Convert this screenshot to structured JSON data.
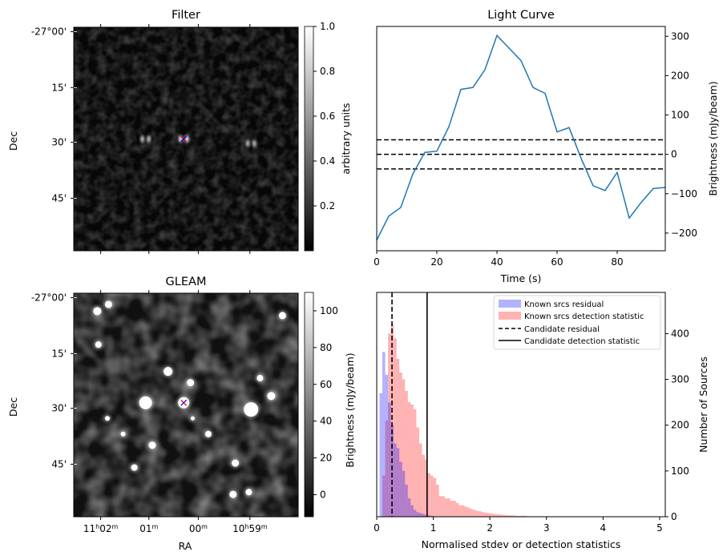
{
  "chart_data": [
    {
      "type": "heatmap",
      "title": "Filter",
      "xlabel": "",
      "ylabel": "Dec",
      "ytick_labels": [
        "-27°00'",
        "15'",
        "30'",
        "45'"
      ],
      "colorbar": {
        "label": "arbitrary units",
        "range": [
          0.0,
          1.0
        ],
        "ticks": [
          "0.2",
          "0.4",
          "0.6",
          "0.8",
          "1.0"
        ],
        "colormap": "gray"
      },
      "sources": [
        {
          "ra_frac": 0.32,
          "dec_frac": 0.5,
          "level": 0.85
        },
        {
          "ra_frac": 0.49,
          "dec_frac": 0.5,
          "level": 1.0
        },
        {
          "ra_frac": 0.79,
          "dec_frac": 0.52,
          "level": 0.8
        },
        {
          "ra_frac": 0.42,
          "dec_frac": 0.33,
          "level": 0.25
        }
      ],
      "candidate_marker": {
        "ra_frac": 0.49,
        "dec_frac": 0.5,
        "colors": [
          "#ff0000",
          "#0000ff"
        ]
      }
    },
    {
      "type": "heatmap",
      "title": "GLEAM",
      "xlabel": "RA",
      "ylabel": "Dec",
      "ytick_labels": [
        "-27°00'",
        "15'",
        "30'",
        "45'"
      ],
      "xtick_labels": [
        {
          "text": "11",
          "h": "h",
          "min": "02",
          "m": "m"
        },
        {
          "text": "01",
          "h": "",
          "min": "",
          "m": "m"
        },
        {
          "text": "00",
          "h": "",
          "min": "",
          "m": "m"
        },
        {
          "text": "10",
          "h": "h",
          "min": "59",
          "m": "m"
        }
      ],
      "colorbar": {
        "label": "Brightness (mJy/beam)",
        "range": [
          -12,
          110
        ],
        "ticks": [
          "0",
          "20",
          "40",
          "60",
          "80",
          "100"
        ],
        "colormap": "gray"
      },
      "sources": [
        {
          "ra_frac": 0.105,
          "dec_frac": 0.08,
          "size": 1.0
        },
        {
          "ra_frac": 0.155,
          "dec_frac": 0.05,
          "size": 0.9
        },
        {
          "ra_frac": 0.11,
          "dec_frac": 0.23,
          "size": 0.8
        },
        {
          "ra_frac": 0.42,
          "dec_frac": 0.35,
          "size": 1.1
        },
        {
          "ra_frac": 0.52,
          "dec_frac": 0.4,
          "size": 0.9
        },
        {
          "ra_frac": 0.32,
          "dec_frac": 0.49,
          "size": 1.6
        },
        {
          "ra_frac": 0.49,
          "dec_frac": 0.49,
          "size": 1.4
        },
        {
          "ra_frac": 0.79,
          "dec_frac": 0.52,
          "size": 1.8
        },
        {
          "ra_frac": 0.88,
          "dec_frac": 0.46,
          "size": 1.0
        },
        {
          "ra_frac": 0.83,
          "dec_frac": 0.38,
          "size": 0.8
        },
        {
          "ra_frac": 0.93,
          "dec_frac": 0.1,
          "size": 0.9
        },
        {
          "ra_frac": 0.6,
          "dec_frac": 0.63,
          "size": 0.8
        },
        {
          "ra_frac": 0.35,
          "dec_frac": 0.68,
          "size": 0.9
        },
        {
          "ra_frac": 0.27,
          "dec_frac": 0.78,
          "size": 0.8
        },
        {
          "ra_frac": 0.72,
          "dec_frac": 0.76,
          "size": 0.9
        },
        {
          "ra_frac": 0.71,
          "dec_frac": 0.9,
          "size": 0.9
        },
        {
          "ra_frac": 0.78,
          "dec_frac": 0.89,
          "size": 0.8
        },
        {
          "ra_frac": 0.15,
          "dec_frac": 0.56,
          "size": 0.6
        },
        {
          "ra_frac": 0.22,
          "dec_frac": 0.63,
          "size": 0.6
        },
        {
          "ra_frac": 0.53,
          "dec_frac": 0.56,
          "size": 0.5
        }
      ],
      "candidate_marker": {
        "ra_frac": 0.49,
        "dec_frac": 0.49,
        "colors": [
          "#ff0000",
          "#0000ff"
        ]
      }
    },
    {
      "type": "line",
      "title": "Light Curve",
      "xlabel": "Time (s)",
      "ylabel": "Brightness (mJy/beam)",
      "xlim": [
        0,
        96
      ],
      "ylim": [
        -245,
        325
      ],
      "xticks": [
        0,
        20,
        40,
        60,
        80
      ],
      "yticks": [
        -200,
        -100,
        0,
        100,
        200,
        300
      ],
      "grid": false,
      "series": [
        {
          "color": "#1f77b4",
          "x": [
            0,
            4,
            8,
            12,
            16,
            20,
            24,
            28,
            32,
            36,
            40,
            44,
            48,
            52,
            56,
            60,
            64,
            68,
            72,
            76,
            80,
            84,
            88,
            92,
            96
          ],
          "y": [
            -218,
            -157,
            -135,
            -50,
            5,
            8,
            70,
            165,
            170,
            215,
            302,
            270,
            238,
            170,
            155,
            57,
            68,
            -10,
            -80,
            -92,
            -46,
            -162,
            -122,
            -87,
            -84
          ]
        }
      ],
      "hlines": [
        {
          "y": 37,
          "style": "dashed",
          "color": "#000000"
        },
        {
          "y": 0,
          "style": "dashed",
          "color": "#000000"
        },
        {
          "y": -37,
          "style": "dashed",
          "color": "#000000"
        }
      ]
    },
    {
      "type": "bar",
      "title": "",
      "xlabel": "Normalised stdev or detection statistics",
      "ylabel": "Number of Sources",
      "xlim": [
        0,
        5.1
      ],
      "ylim": [
        0,
        490
      ],
      "xticks": [
        0,
        1,
        2,
        3,
        4,
        5
      ],
      "yticks": [
        0,
        100,
        200,
        300,
        400
      ],
      "legend_position": "top-right",
      "bin_width": 0.05,
      "series": [
        {
          "name": "Known srcs residual",
          "color": "#0000ff",
          "alpha": 0.3,
          "start": 0.05,
          "values": [
            270,
            360,
            310,
            250,
            200,
            160,
            150,
            120,
            100,
            70,
            40,
            25,
            15,
            10,
            8,
            6,
            4,
            3,
            2,
            1
          ]
        },
        {
          "name": "Known srcs detection statistic",
          "color": "#ff0000",
          "alpha": 0.3,
          "start": 0.1,
          "values": [
            90,
            210,
            400,
            420,
            390,
            345,
            315,
            300,
            275,
            250,
            245,
            235,
            195,
            160,
            135,
            125,
            95,
            90,
            85,
            70,
            45,
            45,
            40,
            40,
            35,
            35,
            30,
            25,
            25,
            22,
            20,
            17,
            15,
            13,
            12,
            10,
            9,
            8,
            7,
            6,
            5,
            5,
            4,
            4,
            3,
            3,
            3,
            2,
            2,
            2,
            2,
            1,
            1,
            1,
            1,
            1,
            1,
            1,
            1,
            0,
            1,
            0,
            1,
            0,
            1,
            0,
            1,
            0,
            1,
            0,
            0,
            1,
            0,
            0,
            1,
            0,
            0,
            1,
            0,
            0,
            1,
            0,
            0,
            1,
            0,
            0,
            1,
            0,
            0,
            1,
            0,
            0,
            1,
            0,
            0
          ]
        }
      ],
      "vlines": [
        {
          "name": "Candidate residual",
          "x": 0.27,
          "style": "dashed",
          "color": "#000000"
        },
        {
          "name": "Candidate detection statistic",
          "x": 0.89,
          "style": "solid",
          "color": "#000000"
        }
      ]
    }
  ]
}
